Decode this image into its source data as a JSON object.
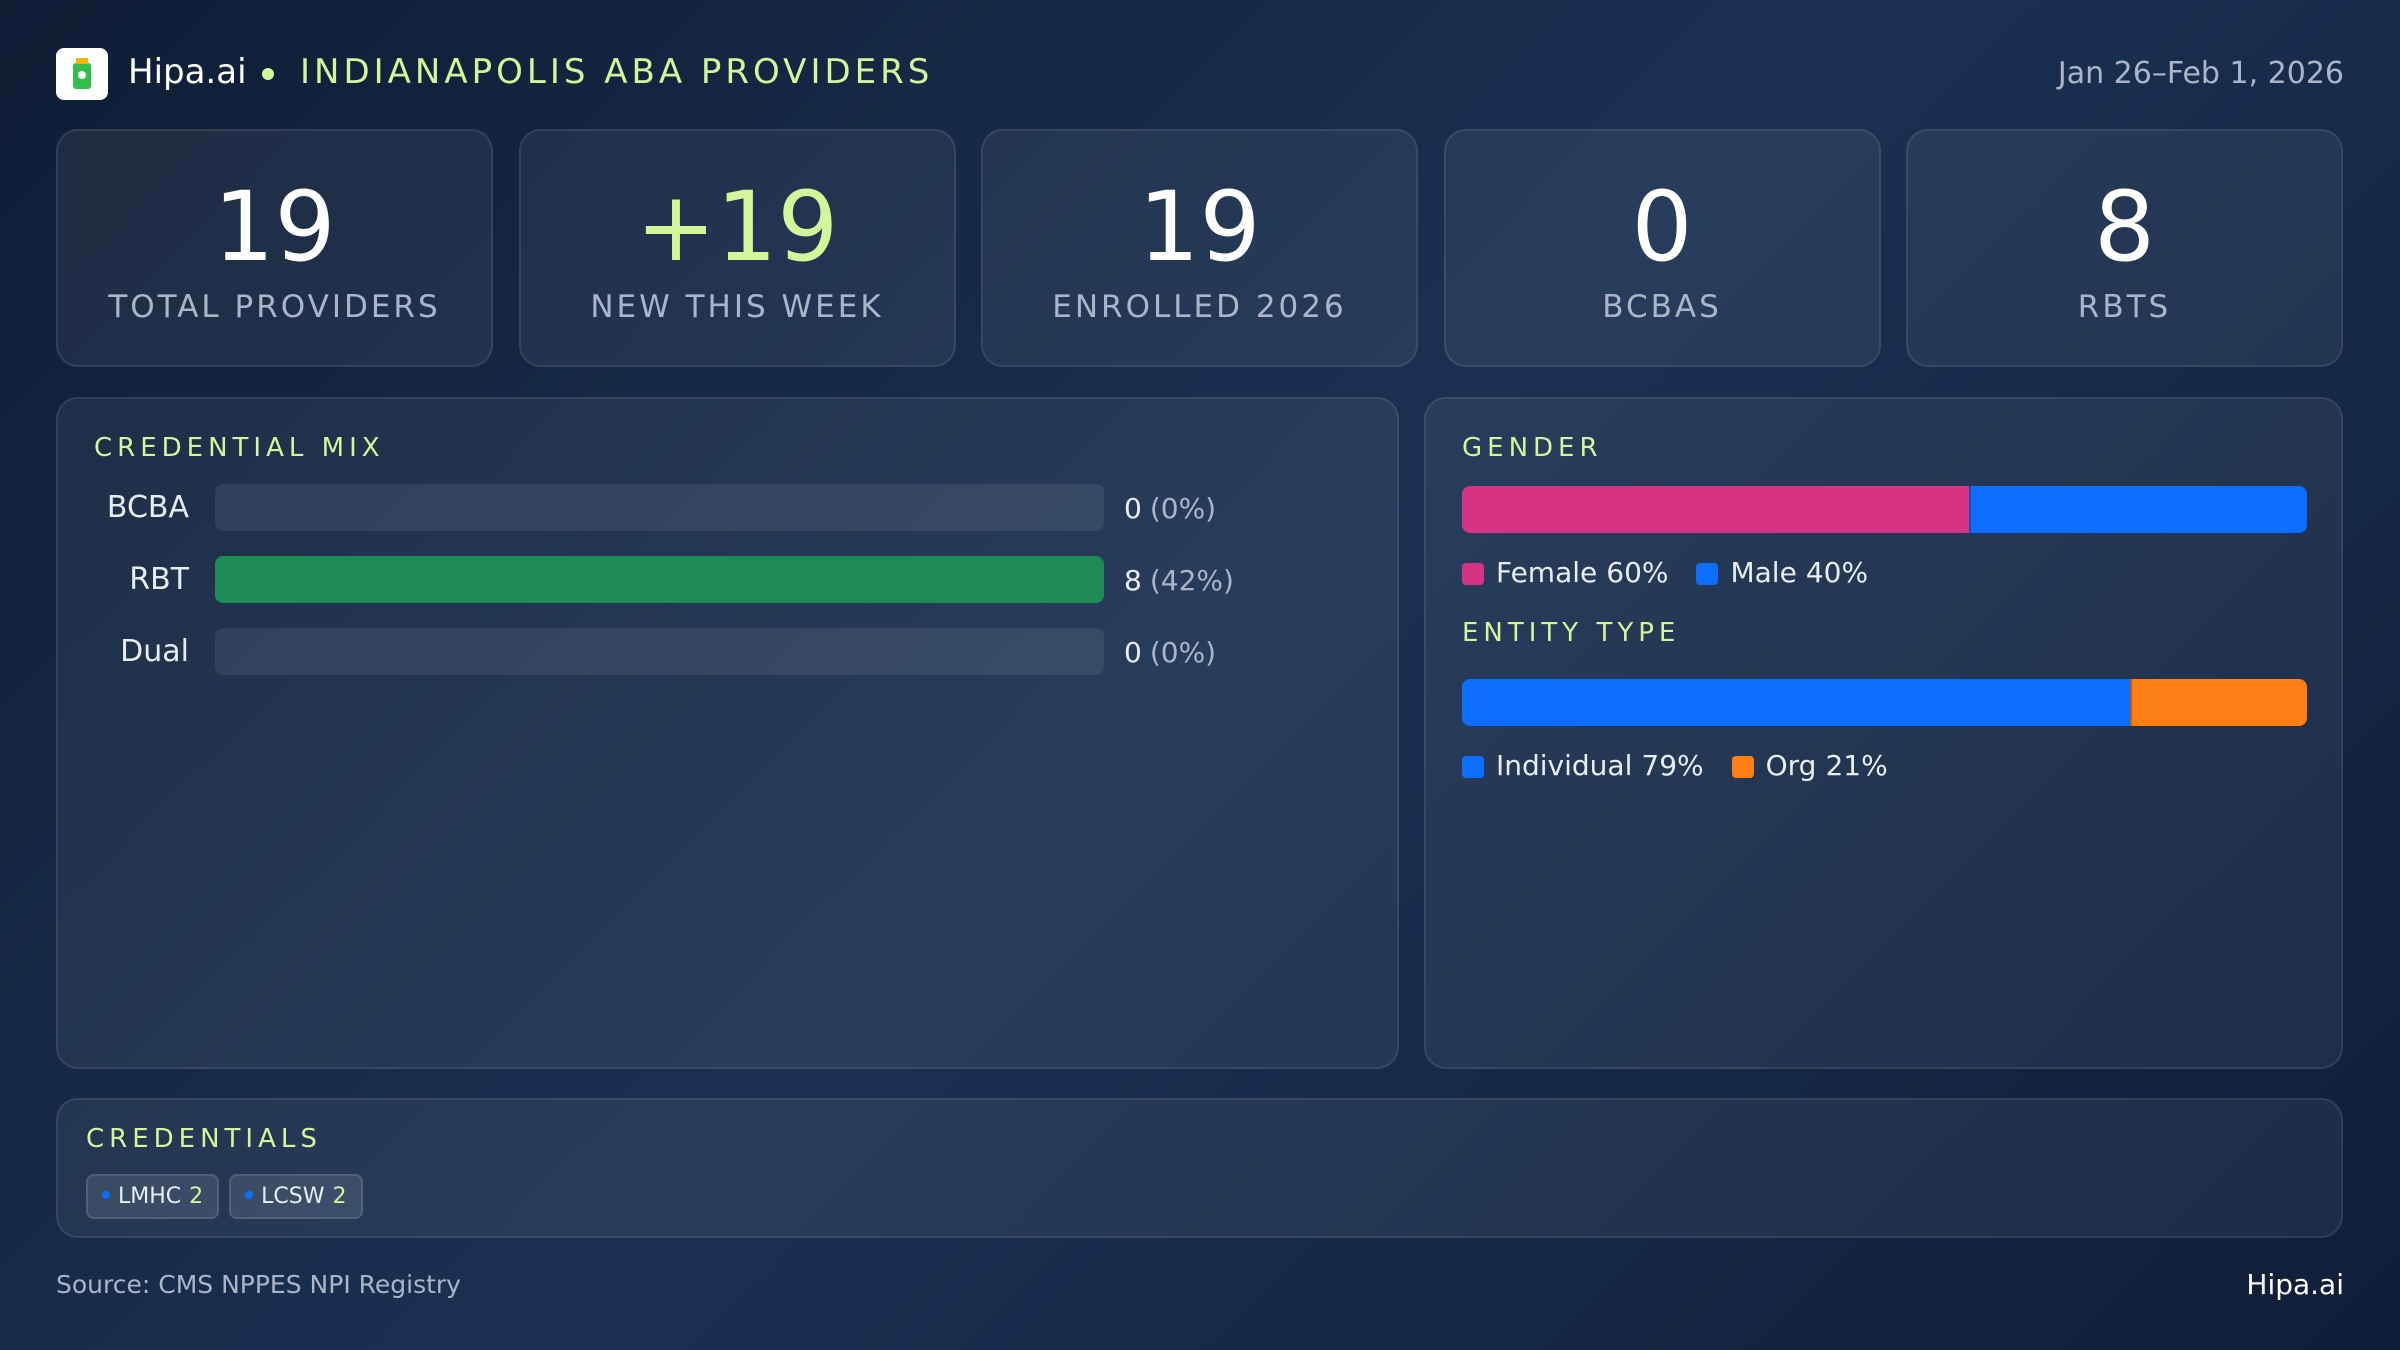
{
  "header": {
    "brand": "Hipa.ai",
    "title": "INDIANAPOLIS ABA PROVIDERS",
    "date": "Jan 26–Feb 1, 2026"
  },
  "kpis": [
    {
      "value": 19,
      "label": "TOTAL PROVIDERS"
    },
    {
      "value": "+19",
      "label": "NEW THIS WEEK"
    },
    {
      "value": 19,
      "label": "ENROLLED 2026"
    },
    {
      "value": 0,
      "label": "BCBAS"
    },
    {
      "value": 8,
      "label": "RBTS"
    }
  ],
  "credential_mix": {
    "title": "CREDENTIAL MIX",
    "color": "#1e8a55",
    "rows": [
      {
        "label": "BCBA",
        "count": 0,
        "percent": "(0%)"
      },
      {
        "label": "RBT",
        "count": 8,
        "percent": "(42%)"
      },
      {
        "label": "Dual",
        "count": 0,
        "percent": "(0%)"
      }
    ]
  },
  "gender": {
    "title": "GENDER",
    "segments": [
      {
        "name": "Female",
        "value": 60,
        "value_label": "60%",
        "color": "#d63384"
      },
      {
        "name": "Male",
        "value": 40,
        "value_label": "40%",
        "color": "#0d6efd"
      }
    ]
  },
  "entity_type": {
    "title": "ENTITY TYPE",
    "segments": [
      {
        "name": "Individual",
        "value": 79,
        "value_label": "79%",
        "color": "#0d6efd"
      },
      {
        "name": "Org",
        "value": 21,
        "value_label": "21%",
        "color": "#fd7e14"
      }
    ]
  },
  "credentials": {
    "title": "CREDENTIALS",
    "chips": [
      {
        "name": "LMHC",
        "count": 2
      },
      {
        "name": "LCSW",
        "count": 2
      }
    ]
  },
  "footer": {
    "source": "Source: CMS NPPES NPI Registry",
    "brand": "Hipa.ai"
  }
}
